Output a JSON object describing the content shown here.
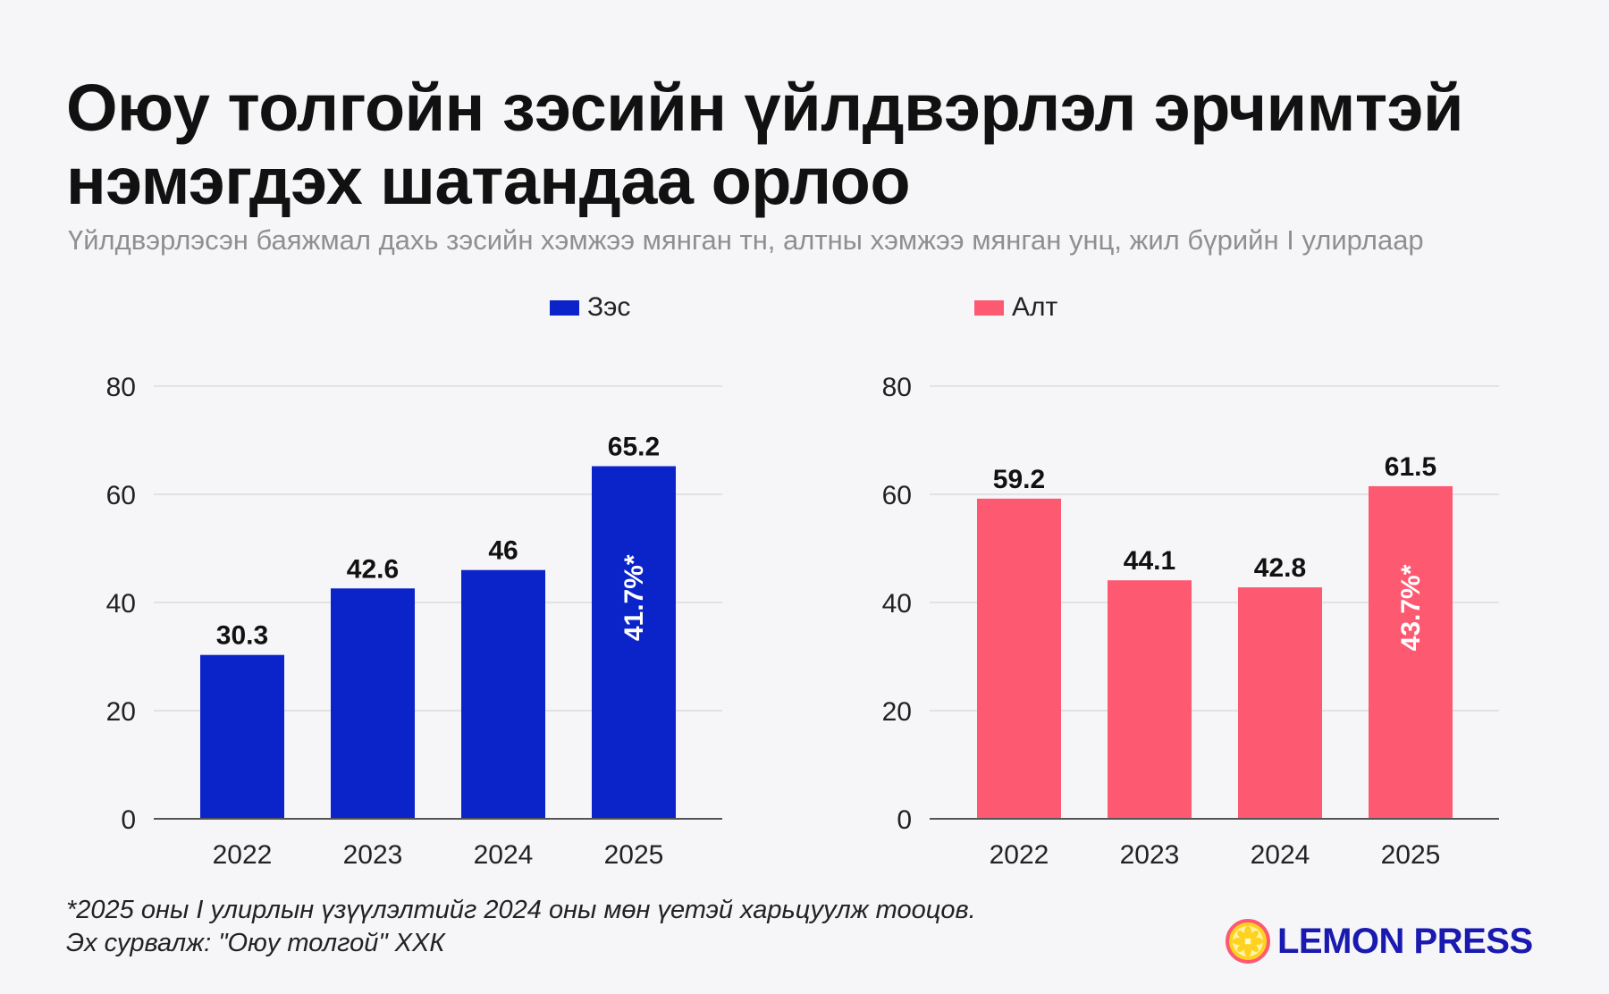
{
  "title_line1": "Оюу толгойн зэсийн үйлдвэрлэл эрчимтэй",
  "title_line2": "нэмэгдэх шатандаа орлоо",
  "subtitle": "Үйлдвэрлэсэн баяжмал дахь зэсийн хэмжээ мянган тн, алтны хэмжээ мянган унц, жил бүрийн I улирлаар",
  "legend": {
    "copper": "Зэс",
    "gold": "Алт"
  },
  "colors": {
    "copper": "#0a24c9",
    "gold": "#fd5a72",
    "grid": "#dcdcdc",
    "axis": "#555555"
  },
  "chart_data": [
    {
      "type": "bar",
      "categories": [
        "2022",
        "2023",
        "2024",
        "2025"
      ],
      "series": [
        {
          "name": "Зэс",
          "values": [
            30.3,
            42.6,
            46,
            65.2
          ]
        }
      ],
      "value_labels": [
        "30.3",
        "42.6",
        "46",
        "65.2"
      ],
      "growth_annotation": {
        "category": "2025",
        "label": "41.7%*"
      },
      "ylim": [
        0,
        80
      ],
      "yticks": [
        0,
        20,
        40,
        60,
        80
      ],
      "grid": true,
      "legend_position": "top"
    },
    {
      "type": "bar",
      "categories": [
        "2022",
        "2023",
        "2024",
        "2025"
      ],
      "series": [
        {
          "name": "Алт",
          "values": [
            59.2,
            44.1,
            42.8,
            61.5
          ]
        }
      ],
      "value_labels": [
        "59.2",
        "44.1",
        "42.8",
        "61.5"
      ],
      "growth_annotation": {
        "category": "2025",
        "label": "43.7%*"
      },
      "ylim": [
        0,
        80
      ],
      "yticks": [
        0,
        20,
        40,
        60,
        80
      ],
      "grid": true,
      "legend_position": "top"
    }
  ],
  "footnote": {
    "line1": "*2025 оны I улирлын үзүүлэлтийг 2024 оны мөн үетэй харьцуулж тооцов.",
    "line2": "Эх сурвалж: \"Оюу толгой\" ХХК"
  },
  "brand": {
    "name": "LEMON PRESS",
    "logo_icon": "lemon-slice-icon"
  }
}
